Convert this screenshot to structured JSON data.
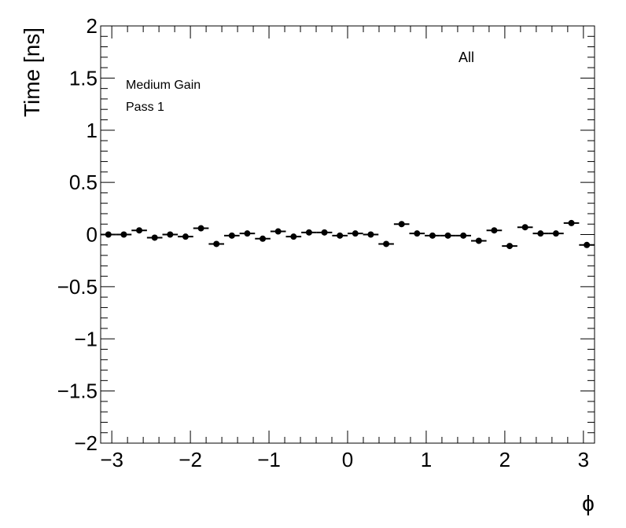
{
  "chart_data": {
    "type": "scatter",
    "title": "",
    "xlabel": "ϕ",
    "ylabel": "Time [ns]",
    "xlim": [
      -3.14159,
      3.14159
    ],
    "ylim": [
      -2,
      2
    ],
    "x_ticks": [
      -3,
      -2,
      -1,
      0,
      1,
      2,
      3
    ],
    "x_tick_labels": [
      "−3",
      "−2",
      "−1",
      "0",
      "1",
      "2",
      "3"
    ],
    "y_ticks": [
      -2,
      -1.5,
      -1,
      -0.5,
      0,
      0.5,
      1,
      1.5,
      2
    ],
    "y_tick_labels": [
      "−2",
      "−1.5",
      "−1",
      "−0.5",
      "0",
      "0.5",
      "1",
      "1.5",
      "2"
    ],
    "grid": false,
    "annotations": [
      "Medium Gain",
      "Pass 1",
      "All"
    ],
    "bin_half_width": 0.0982,
    "series": [
      {
        "x": [
          -3.0434,
          -2.8471,
          -2.6507,
          -2.4544,
          -2.258,
          -2.0617,
          -1.8653,
          -1.669,
          -1.4726,
          -1.2763,
          -1.0799,
          -0.8836,
          -0.6872,
          -0.4909,
          -0.2945,
          -0.0982,
          0.0982,
          0.2945,
          0.4909,
          0.6872,
          0.8836,
          1.0799,
          1.2763,
          1.4726,
          1.669,
          1.8653,
          2.0617,
          2.258,
          2.4544,
          2.6507,
          2.8471,
          3.0434
        ],
        "y": [
          0.0,
          0.0,
          0.04,
          -0.03,
          0.0,
          -0.02,
          0.06,
          -0.09,
          -0.01,
          0.01,
          -0.04,
          0.03,
          -0.02,
          0.02,
          0.02,
          -0.01,
          0.01,
          0.0,
          -0.09,
          0.1,
          0.01,
          -0.01,
          -0.01,
          -0.01,
          -0.06,
          0.04,
          -0.11,
          0.07,
          0.01,
          0.01,
          0.11,
          -0.1
        ]
      }
    ]
  }
}
